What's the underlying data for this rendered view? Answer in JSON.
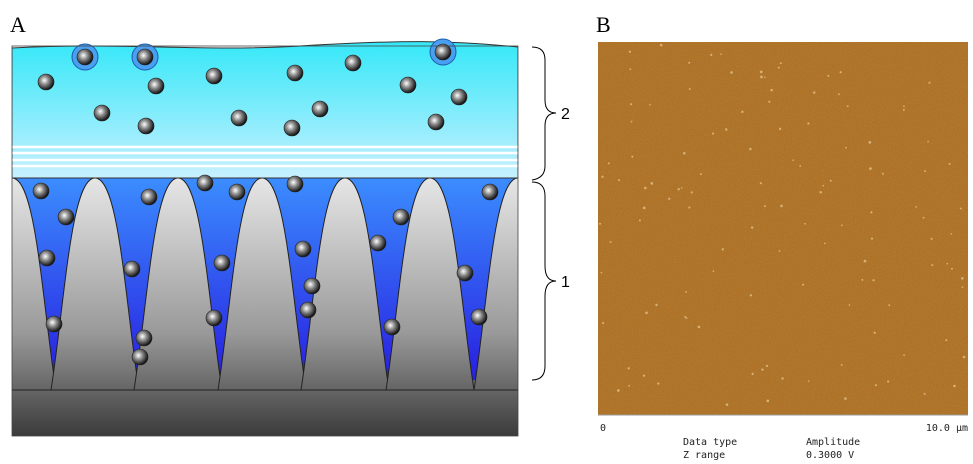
{
  "panel_a": {
    "label": "A",
    "brackets": [
      {
        "label": "2"
      },
      {
        "label": "1"
      }
    ]
  },
  "panel_b": {
    "label": "B",
    "scale_start": "0",
    "scale_end": "10.0 µm",
    "info": [
      [
        "Data type",
        "Amplitude"
      ],
      [
        "Z range",
        "0.3000 V"
      ]
    ]
  }
}
